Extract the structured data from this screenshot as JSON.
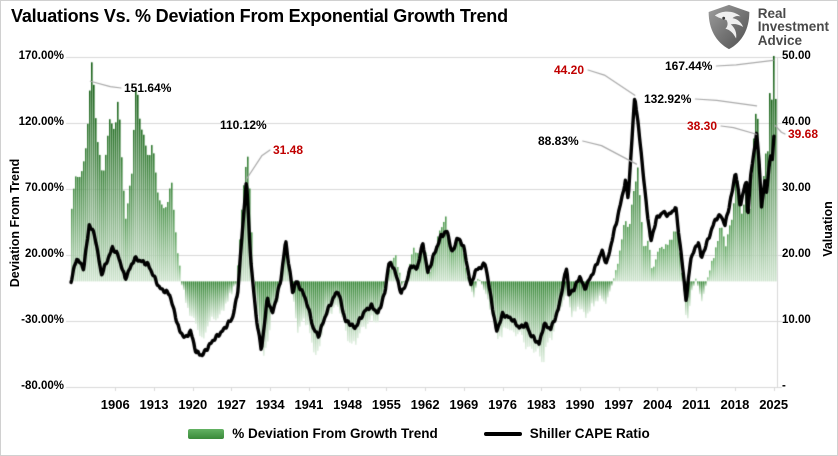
{
  "title": "Valuations Vs. % Deviation From Exponential Growth Trend",
  "logo": {
    "line1": "Real",
    "line2": "Investment",
    "line3": "Advice"
  },
  "colors": {
    "green_dark": "#115c11",
    "green_mid": "#3e8e3e",
    "green_light": "#eaf4ea",
    "cape_line": "#000000",
    "annotation_red": "#c00000",
    "annotation_black": "#000000",
    "grid": "#d9d9d9",
    "callout": "#a9a9a9",
    "logo_text": "#4a4a4a"
  },
  "axes": {
    "left": {
      "title": "Deviation From Trend",
      "ticks": [
        "170.00%",
        "120.00%",
        "70.00%",
        "20.00%",
        "-30.00%",
        "-80.00%"
      ],
      "tick_values": [
        170,
        120,
        70,
        20,
        -30,
        -80
      ]
    },
    "right": {
      "title": "Valuation",
      "ticks": [
        "50.00",
        "40.00",
        "30.00",
        "20.00",
        "10.00",
        "-"
      ],
      "tick_values": [
        50,
        40,
        30,
        20,
        10,
        0
      ]
    },
    "x": {
      "ticks": [
        "1906",
        "1913",
        "1920",
        "1927",
        "1934",
        "1941",
        "1948",
        "1955",
        "1962",
        "1969",
        "1976",
        "1983",
        "1990",
        "1997",
        "2004",
        "2011",
        "2018",
        "2025"
      ]
    }
  },
  "legend": [
    {
      "label": "% Deviation From Growth Trend",
      "color": "#4a9e4a",
      "type": "box"
    },
    {
      "label": "Shiller CAPE Ratio",
      "color": "#000000",
      "type": "line"
    }
  ],
  "annotations": [
    {
      "text": "151.64%",
      "color": "#000000",
      "series": "deviation",
      "year": 1901.5,
      "value": 151.64,
      "callout": true
    },
    {
      "text": "110.12%",
      "color": "#000000",
      "series": "deviation",
      "year": 1929.7,
      "value": 110.12,
      "callout": false
    },
    {
      "text": "31.48",
      "color": "#c00000",
      "series": "cape",
      "year": 1929.7,
      "value": 31.48,
      "callout": true
    },
    {
      "text": "44.20",
      "color": "#c00000",
      "series": "cape",
      "year": 1999.9,
      "value": 44.2,
      "callout": true
    },
    {
      "text": "88.83%",
      "color": "#000000",
      "series": "deviation",
      "year": 2000.2,
      "value": 88.83,
      "callout": true
    },
    {
      "text": "167.44%",
      "color": "#000000",
      "series": "deviation",
      "year": 2024.9,
      "value": 167.44,
      "callout": true
    },
    {
      "text": "132.92%",
      "color": "#000000",
      "series": "deviation",
      "year": 2021.9,
      "value": 132.92,
      "callout": true
    },
    {
      "text": "38.30",
      "color": "#c00000",
      "series": "cape",
      "year": 2021.9,
      "value": 38.3,
      "callout": true
    },
    {
      "text": "39.68",
      "color": "#c00000",
      "series": "cape",
      "year": 2025.2,
      "value": 39.68,
      "callout": true
    }
  ],
  "chart_data": {
    "type": "area+line",
    "title": "Valuations Vs. % Deviation From Exponential Growth Trend",
    "x_range": [
      1898,
      2025.6
    ],
    "y_left_label": "Deviation From Trend",
    "y_left_range": [
      -80,
      170
    ],
    "y_right_label": "Valuation",
    "y_right_range": [
      0,
      50
    ],
    "grid": true,
    "legend_position": "bottom",
    "series": [
      {
        "name": "% Deviation From Growth Trend",
        "axis": "left",
        "unit": "%",
        "style": "gradient-bars",
        "points": [
          [
            1898,
            55
          ],
          [
            1899,
            80
          ],
          [
            1900.2,
            90
          ],
          [
            1901.5,
            151.64
          ],
          [
            1902.2,
            138
          ],
          [
            1903.5,
            78
          ],
          [
            1904.5,
            105
          ],
          [
            1905.6,
            128
          ],
          [
            1906.4,
            135
          ],
          [
            1907.8,
            42
          ],
          [
            1908.8,
            90
          ],
          [
            1909.5,
            140
          ],
          [
            1910.5,
            118
          ],
          [
            1911.5,
            100
          ],
          [
            1912.3,
            108
          ],
          [
            1913.3,
            72
          ],
          [
            1914.5,
            55
          ],
          [
            1916,
            70
          ],
          [
            1917,
            30
          ],
          [
            1917.8,
            0
          ],
          [
            1918.7,
            -17
          ],
          [
            1920.3,
            -33
          ],
          [
            1921.7,
            -45
          ],
          [
            1922.4,
            -33
          ],
          [
            1924.2,
            -28
          ],
          [
            1926,
            -17
          ],
          [
            1927.8,
            0
          ],
          [
            1928.5,
            40
          ],
          [
            1929.7,
            110.12
          ],
          [
            1930.9,
            0
          ],
          [
            1932,
            -42
          ],
          [
            1932.7,
            -60
          ],
          [
            1934.2,
            -23
          ],
          [
            1935.4,
            -13
          ],
          [
            1936,
            5
          ],
          [
            1936.8,
            28
          ],
          [
            1937.6,
            0
          ],
          [
            1938.9,
            -40
          ],
          [
            1939.8,
            -25
          ],
          [
            1941.2,
            -45
          ],
          [
            1942.3,
            -56
          ],
          [
            1943.9,
            -28
          ],
          [
            1945.9,
            -17
          ],
          [
            1947.5,
            -38
          ],
          [
            1949.1,
            -50
          ],
          [
            1950.8,
            -33
          ],
          [
            1952.3,
            -29
          ],
          [
            1953.2,
            -33
          ],
          [
            1954.8,
            0
          ],
          [
            1955.8,
            15
          ],
          [
            1956.5,
            20
          ],
          [
            1957.8,
            -5
          ],
          [
            1958.6,
            5
          ],
          [
            1959.8,
            25
          ],
          [
            1960.8,
            18
          ],
          [
            1961.6,
            32
          ],
          [
            1962.6,
            5
          ],
          [
            1963.5,
            20
          ],
          [
            1964.5,
            42
          ],
          [
            1965.5,
            45
          ],
          [
            1966.4,
            28
          ],
          [
            1966.9,
            22
          ],
          [
            1967.8,
            35
          ],
          [
            1968.8,
            20
          ],
          [
            1969.7,
            0
          ],
          [
            1970.6,
            -13
          ],
          [
            1971.5,
            4
          ],
          [
            1973.2,
            -15
          ],
          [
            1974.8,
            -38
          ],
          [
            1975.7,
            -45
          ],
          [
            1976.6,
            -33
          ],
          [
            1978,
            -39
          ],
          [
            1979.8,
            -45
          ],
          [
            1981.3,
            -53
          ],
          [
            1982.9,
            -58
          ],
          [
            1984,
            -48
          ],
          [
            1985,
            -42
          ],
          [
            1986,
            -22
          ],
          [
            1987.6,
            -10
          ],
          [
            1988.3,
            -27
          ],
          [
            1989.5,
            -18
          ],
          [
            1990.8,
            -28
          ],
          [
            1992,
            -18
          ],
          [
            1993.5,
            -13
          ],
          [
            1994.5,
            -16
          ],
          [
            1995.5,
            -5
          ],
          [
            1996.3,
            8
          ],
          [
            1997.3,
            28
          ],
          [
            1998.2,
            48
          ],
          [
            1998.7,
            38
          ],
          [
            1999.5,
            70
          ],
          [
            2000.2,
            88.83
          ],
          [
            2000.9,
            45
          ],
          [
            2001.5,
            25
          ],
          [
            2002.2,
            33
          ],
          [
            2002.9,
            8
          ],
          [
            2003.5,
            15
          ],
          [
            2004.5,
            28
          ],
          [
            2005.5,
            27
          ],
          [
            2006.5,
            33
          ],
          [
            2007.6,
            38
          ],
          [
            2008.3,
            5
          ],
          [
            2009.2,
            -33
          ],
          [
            2010,
            -8
          ],
          [
            2010.8,
            2
          ],
          [
            2011.8,
            -15
          ],
          [
            2012.5,
            -5
          ],
          [
            2013.5,
            12
          ],
          [
            2014.5,
            28
          ],
          [
            2015.5,
            40
          ],
          [
            2016.2,
            28
          ],
          [
            2017.5,
            55
          ],
          [
            2018.1,
            76
          ],
          [
            2018.95,
            52
          ],
          [
            2019.8,
            68
          ],
          [
            2020.15,
            70
          ],
          [
            2020.3,
            42
          ],
          [
            2020.9,
            80
          ],
          [
            2021.9,
            132.92
          ],
          [
            2022.8,
            66
          ],
          [
            2023.3,
            91
          ],
          [
            2023.8,
            101
          ],
          [
            2024.2,
            142
          ],
          [
            2024.5,
            127
          ],
          [
            2024.9,
            167.44
          ],
          [
            2025.2,
            150
          ]
        ]
      },
      {
        "name": "Shiller CAPE Ratio",
        "axis": "right",
        "unit": "",
        "style": "line",
        "points": [
          [
            1898,
            16
          ],
          [
            1899,
            19.5
          ],
          [
            1900.3,
            18
          ],
          [
            1901.3,
            24.6
          ],
          [
            1902.3,
            23
          ],
          [
            1903.5,
            17
          ],
          [
            1905.5,
            21.1
          ],
          [
            1906.5,
            20
          ],
          [
            1907.8,
            16.4
          ],
          [
            1909.5,
            19.5
          ],
          [
            1911.9,
            18.6
          ],
          [
            1914,
            15
          ],
          [
            1915.8,
            14.1
          ],
          [
            1917.6,
            8.5
          ],
          [
            1918.7,
            7.4
          ],
          [
            1919.6,
            8.5
          ],
          [
            1920.6,
            5.3
          ],
          [
            1921.7,
            4.8
          ],
          [
            1923.6,
            7
          ],
          [
            1925.4,
            8.5
          ],
          [
            1927.2,
            10.5
          ],
          [
            1928.1,
            14.1
          ],
          [
            1929.7,
            31.48
          ],
          [
            1930.5,
            19.1
          ],
          [
            1931.4,
            11.1
          ],
          [
            1932.4,
            5.5
          ],
          [
            1933.5,
            13.5
          ],
          [
            1934.4,
            11.1
          ],
          [
            1935.9,
            16.1
          ],
          [
            1936.8,
            22.1
          ],
          [
            1938.1,
            14.1
          ],
          [
            1938.6,
            16.1
          ],
          [
            1939.8,
            14.5
          ],
          [
            1940.7,
            12.6
          ],
          [
            1941.8,
            8.9
          ],
          [
            1942.7,
            7.7
          ],
          [
            1944.3,
            11.5
          ],
          [
            1945.8,
            14.1
          ],
          [
            1946.3,
            14.5
          ],
          [
            1947.6,
            10
          ],
          [
            1948.5,
            9.6
          ],
          [
            1949.3,
            8.9
          ],
          [
            1951.1,
            11.5
          ],
          [
            1952.3,
            12.3
          ],
          [
            1953.5,
            11.1
          ],
          [
            1954.8,
            14.5
          ],
          [
            1955.4,
            18.8
          ],
          [
            1956.3,
            18.2
          ],
          [
            1957.7,
            14.2
          ],
          [
            1958.5,
            15.5
          ],
          [
            1959.5,
            18.5
          ],
          [
            1960.5,
            17.8
          ],
          [
            1961.6,
            21.8
          ],
          [
            1962.5,
            17.3
          ],
          [
            1963.5,
            19.8
          ],
          [
            1964.9,
            22.9
          ],
          [
            1966,
            23.6
          ],
          [
            1966.9,
            20.2
          ],
          [
            1967.8,
            22.6
          ],
          [
            1968.9,
            21.5
          ],
          [
            1970.3,
            15.3
          ],
          [
            1971,
            17.5
          ],
          [
            1972.9,
            18.7
          ],
          [
            1973.9,
            13.5
          ],
          [
            1974.9,
            8.4
          ],
          [
            1976,
            11
          ],
          [
            1977.7,
            10.3
          ],
          [
            1979,
            9
          ],
          [
            1980.3,
            9.5
          ],
          [
            1981,
            8
          ],
          [
            1982.6,
            6.5
          ],
          [
            1983.5,
            9.5
          ],
          [
            1984.7,
            8.8
          ],
          [
            1986,
            11.5
          ],
          [
            1987.6,
            18.3
          ],
          [
            1988,
            13.9
          ],
          [
            1989,
            15
          ],
          [
            1990,
            16.8
          ],
          [
            1990.8,
            14.8
          ],
          [
            1992.5,
            17.6
          ],
          [
            1994,
            20.6
          ],
          [
            1994.8,
            18.6
          ],
          [
            1996,
            23
          ],
          [
            1997,
            26.5
          ],
          [
            1998.2,
            31.2
          ],
          [
            1998.7,
            28.6
          ],
          [
            1999.9,
            44.2
          ],
          [
            2001,
            36
          ],
          [
            2001.8,
            29
          ],
          [
            2002.8,
            22
          ],
          [
            2003.8,
            25.5
          ],
          [
            2005,
            26.5
          ],
          [
            2006,
            26
          ],
          [
            2007.3,
            27.2
          ],
          [
            2008.3,
            20
          ],
          [
            2009.2,
            13
          ],
          [
            2010,
            19.5
          ],
          [
            2011.4,
            22
          ],
          [
            2011.9,
            19.5
          ],
          [
            2013,
            22
          ],
          [
            2014.5,
            25.5
          ],
          [
            2015.5,
            26
          ],
          [
            2016.2,
            24.5
          ],
          [
            2017.5,
            29.5
          ],
          [
            2018.1,
            32.7
          ],
          [
            2018.95,
            27.5
          ],
          [
            2019.8,
            30.5
          ],
          [
            2020.1,
            31
          ],
          [
            2020.3,
            25.5
          ],
          [
            2020.9,
            32.5
          ],
          [
            2021.9,
            38.3
          ],
          [
            2022.4,
            34
          ],
          [
            2022.8,
            27.1
          ],
          [
            2023.4,
            31.2
          ],
          [
            2023.7,
            29.7
          ],
          [
            2024.5,
            35.5
          ],
          [
            2024.7,
            34
          ],
          [
            2025.2,
            39.68
          ]
        ]
      }
    ]
  }
}
